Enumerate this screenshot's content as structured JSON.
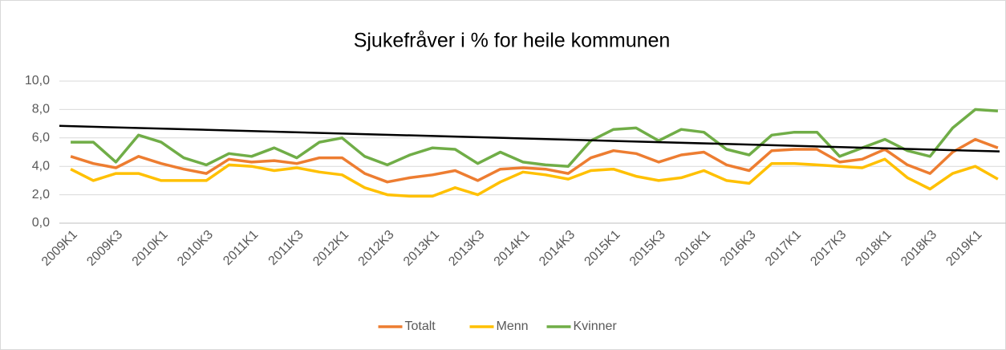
{
  "chart_data": {
    "type": "line",
    "title": "Sjukefråver i % for heile kommunen",
    "categories": [
      "2009K1",
      null,
      "2009K3",
      null,
      "2010K1",
      null,
      "2010K3",
      null,
      "2011K1",
      null,
      "2011K3",
      null,
      "2012K1",
      null,
      "2012K3",
      null,
      "2013K1",
      null,
      "2013K3",
      null,
      "2014K1",
      null,
      "2014K3",
      null,
      "2015K1",
      null,
      "2015K3",
      null,
      "2016K1",
      null,
      "2016K3",
      null,
      "2017K1",
      null,
      "2017K3",
      null,
      "2018K1",
      null,
      "2018K3",
      null,
      "2019K1",
      null
    ],
    "series": [
      {
        "name": "Totalt",
        "color": "#ed7d31",
        "values": [
          4.7,
          4.2,
          3.9,
          4.7,
          4.2,
          3.8,
          3.5,
          4.5,
          4.3,
          4.4,
          4.2,
          4.6,
          4.6,
          3.5,
          2.9,
          3.2,
          3.4,
          3.7,
          3.0,
          3.8,
          3.9,
          3.8,
          3.5,
          4.6,
          5.1,
          4.9,
          4.3,
          4.8,
          5.0,
          4.1,
          3.7,
          5.1,
          5.2,
          5.2,
          4.3,
          4.5,
          5.2,
          4.1,
          3.5,
          5.0,
          5.9,
          5.3
        ]
      },
      {
        "name": "Menn",
        "color": "#ffc000",
        "values": [
          3.8,
          3.0,
          3.5,
          3.5,
          3.0,
          3.0,
          3.0,
          4.1,
          4.0,
          3.7,
          3.9,
          3.6,
          3.4,
          2.5,
          2.0,
          1.9,
          1.9,
          2.5,
          2.0,
          2.9,
          3.6,
          3.4,
          3.1,
          3.7,
          3.8,
          3.3,
          3.0,
          3.2,
          3.7,
          3.0,
          2.8,
          4.2,
          4.2,
          4.1,
          4.0,
          3.9,
          4.5,
          3.2,
          2.4,
          3.5,
          4.0,
          3.1
        ]
      },
      {
        "name": "Kvinner",
        "color": "#70ad47",
        "values": [
          5.7,
          5.7,
          4.3,
          6.2,
          5.7,
          4.6,
          4.1,
          4.9,
          4.7,
          5.3,
          4.6,
          5.7,
          6.0,
          4.7,
          4.1,
          4.8,
          5.3,
          5.2,
          4.2,
          5.0,
          4.3,
          4.1,
          4.0,
          5.8,
          6.6,
          6.7,
          5.8,
          6.6,
          6.4,
          5.2,
          4.8,
          6.2,
          6.4,
          6.4,
          4.7,
          5.3,
          5.9,
          5.1,
          4.7,
          6.7,
          8.0,
          7.9
        ]
      }
    ],
    "trendline": {
      "color": "#000000",
      "values": [
        6.85,
        5.05
      ]
    },
    "ylim": [
      0,
      10
    ],
    "yticks": [
      {
        "value": 0,
        "label": "0,0"
      },
      {
        "value": 2,
        "label": "2,0"
      },
      {
        "value": 4,
        "label": "4,0"
      },
      {
        "value": 6,
        "label": "6,0"
      },
      {
        "value": 8,
        "label": "8,0"
      },
      {
        "value": 10,
        "label": "10,0"
      }
    ],
    "grid": true,
    "legend": "bottom"
  }
}
